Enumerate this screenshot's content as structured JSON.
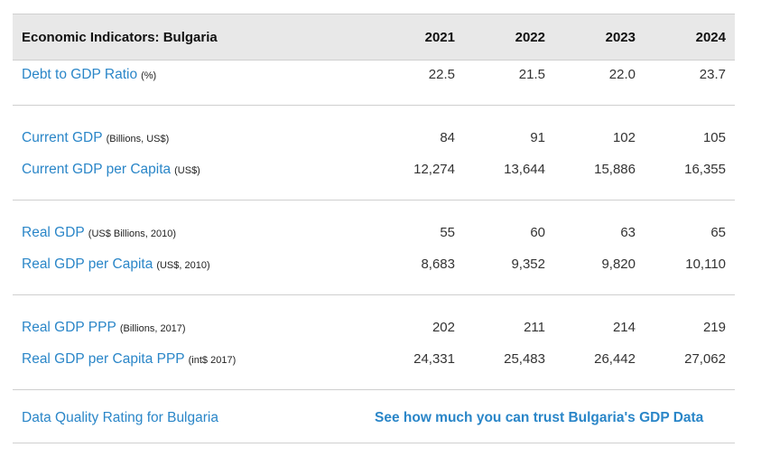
{
  "header": {
    "title": "Economic Indicators: Bulgaria",
    "years": [
      "2021",
      "2022",
      "2023",
      "2024"
    ]
  },
  "rows": [
    {
      "label": "Debt to GDP Ratio",
      "unit": "(%)",
      "values": [
        "22.5",
        "21.5",
        "22.0",
        "23.7"
      ]
    },
    {
      "label": "Current GDP",
      "unit": "(Billions, US$)",
      "values": [
        "84",
        "91",
        "102",
        "105"
      ]
    },
    {
      "label": "Current GDP per Capita",
      "unit": "(US$)",
      "values": [
        "12,274",
        "13,644",
        "15,886",
        "16,355"
      ]
    },
    {
      "label": "Real GDP",
      "unit": "(US$ Billions, 2010)",
      "values": [
        "55",
        "60",
        "63",
        "65"
      ]
    },
    {
      "label": "Real GDP per Capita",
      "unit": "(US$, 2010)",
      "values": [
        "8,683",
        "9,352",
        "9,820",
        "10,110"
      ]
    },
    {
      "label": "Real GDP PPP",
      "unit": "(Billions, 2017)",
      "values": [
        "202",
        "211",
        "214",
        "219"
      ]
    },
    {
      "label": "Real GDP per Capita PPP",
      "unit": "(int$ 2017)",
      "values": [
        "24,331",
        "25,483",
        "26,442",
        "27,062"
      ]
    }
  ],
  "footer": {
    "rating_label": "Data Quality Rating for Bulgaria",
    "trust_link": "See how much you can trust Bulgaria's GDP Data"
  },
  "colors": {
    "link": "#2a86c8",
    "header_bg": "#e8e8e8",
    "separator": "#cfcfcf"
  }
}
